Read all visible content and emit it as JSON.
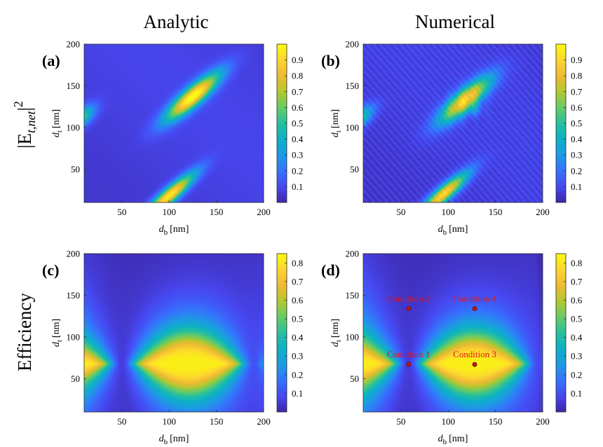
{
  "figure": {
    "column_titles": [
      "Analytic",
      "Numerical"
    ],
    "row_labels": [
      "Efficiency"
    ],
    "field_label": {
      "prefix": "|E",
      "sub": "t,net",
      "suffix": "|",
      "sup": "2"
    }
  },
  "chart_data": [
    {
      "type": "heatmap",
      "panel": "(a)",
      "field": "|E_t,net|^2",
      "model": "Analytic",
      "x": {
        "label_var": "d",
        "label_sub": "b",
        "label_unit": "[nm]",
        "range": [
          10,
          200
        ],
        "ticks": [
          50,
          100,
          150,
          200
        ]
      },
      "y": {
        "label_var": "d",
        "label_sub": "t",
        "label_unit": "[nm]",
        "range": [
          10,
          200
        ],
        "ticks": [
          50,
          100,
          150,
          200
        ]
      },
      "colorbar": {
        "range": [
          0,
          1
        ],
        "ticks": [
          0.1,
          0.2,
          0.3,
          0.4,
          0.5,
          0.6,
          0.7,
          0.8,
          0.9
        ]
      },
      "colormap": "parula",
      "hotspots": [
        {
          "center": [
            125,
            137
          ],
          "peak": 1.0,
          "orientation": "diagonal"
        },
        {
          "center": [
            100,
            18
          ],
          "peak": 0.9,
          "orientation": "diagonal"
        },
        {
          "center": [
            10,
            108
          ],
          "peak": 0.5,
          "orientation": "diagonal"
        }
      ]
    },
    {
      "type": "heatmap",
      "panel": "(b)",
      "field": "|E_t,net|^2",
      "model": "Numerical",
      "x": {
        "label_var": "d",
        "label_sub": "b",
        "label_unit": "[nm]",
        "range": [
          10,
          200
        ],
        "ticks": [
          50,
          100,
          150,
          200
        ]
      },
      "y": {
        "label_var": "d",
        "label_sub": "t",
        "label_unit": "[nm]",
        "range": [
          10,
          200
        ],
        "ticks": [
          50,
          100,
          150,
          200
        ]
      },
      "colorbar": {
        "range": [
          0,
          1
        ],
        "ticks": [
          0.1,
          0.2,
          0.3,
          0.4,
          0.5,
          0.6,
          0.7,
          0.8,
          0.9
        ]
      },
      "colormap": "parula",
      "hotspots": [
        {
          "center": [
            118,
            133
          ],
          "peak": 0.95,
          "orientation": "diagonal"
        },
        {
          "center": [
            95,
            20
          ],
          "peak": 0.85,
          "orientation": "diagonal"
        },
        {
          "center": [
            10,
            108
          ],
          "peak": 0.45,
          "orientation": "diagonal"
        }
      ]
    },
    {
      "type": "heatmap",
      "panel": "(c)",
      "field": "Efficiency",
      "model": "Analytic",
      "x": {
        "label_var": "d",
        "label_sub": "b",
        "label_unit": "[nm]",
        "range": [
          10,
          200
        ],
        "ticks": [
          50,
          100,
          150,
          200
        ]
      },
      "y": {
        "label_var": "d",
        "label_sub": "t",
        "label_unit": "[nm]",
        "range": [
          10,
          200
        ],
        "ticks": [
          50,
          100,
          150,
          200
        ]
      },
      "colorbar": {
        "range": [
          0,
          0.85
        ],
        "ticks": [
          0.1,
          0.2,
          0.3,
          0.4,
          0.5,
          0.6,
          0.7,
          0.8
        ]
      },
      "colormap": "parula",
      "minima_db": [
        50,
        190
      ],
      "maximum_dt": 68
    },
    {
      "type": "heatmap",
      "panel": "(d)",
      "field": "Efficiency",
      "model": "Numerical",
      "x": {
        "label_var": "d",
        "label_sub": "b",
        "label_unit": "[nm]",
        "range": [
          10,
          200
        ],
        "ticks": [
          50,
          100,
          150,
          200
        ]
      },
      "y": {
        "label_var": "d",
        "label_sub": "t",
        "label_unit": "[nm]",
        "range": [
          10,
          200
        ],
        "ticks": [
          50,
          100,
          150,
          200
        ]
      },
      "colorbar": {
        "range": [
          0,
          0.85
        ],
        "ticks": [
          0.1,
          0.2,
          0.3,
          0.4,
          0.5,
          0.6,
          0.7,
          0.8
        ]
      },
      "colormap": "parula",
      "minima_db": [
        58,
        195
      ],
      "maximum_dt": 68,
      "annotations": [
        {
          "label": "Condition 1",
          "db": 58,
          "dt": 67
        },
        {
          "label": "Condition 2",
          "db": 58,
          "dt": 134
        },
        {
          "label": "Condition 3",
          "db": 128,
          "dt": 67
        },
        {
          "label": "Condition 4",
          "db": 128,
          "dt": 134
        }
      ]
    }
  ]
}
